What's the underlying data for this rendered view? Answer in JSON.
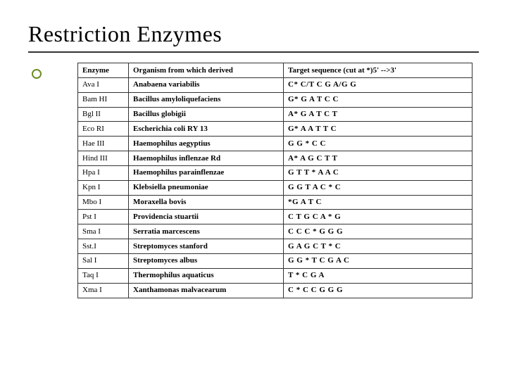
{
  "title": "Restriction Enzymes",
  "table": {
    "columns": [
      "Enzyme",
      "Organism from which derived",
      "Target sequence (cut at *)5' -->3'"
    ],
    "rows": [
      [
        "Ava I",
        "Anabaena variabilis",
        "C* C/T C G A/G G"
      ],
      [
        "Bam HI",
        "Bacillus amyloliquefaciens",
        "G* G A T C C"
      ],
      [
        "Bgl II",
        "Bacillus globigii",
        "A* G A T C T"
      ],
      [
        "Eco RI",
        "Escherichia coli RY 13",
        "G* A A T T C"
      ],
      [
        "Hae III",
        "Haemophilus aegyptius",
        "G G * C C"
      ],
      [
        "Hind III",
        "Haemophilus inflenzae Rd",
        "A* A G C T T"
      ],
      [
        "Hpa I",
        "Haemophilus parainflenzae",
        "G T T * A A C"
      ],
      [
        "Kpn I",
        "Klebsiella pneumoniae",
        "G G T A C * C"
      ],
      [
        "Mbo I",
        "Moraxella bovis",
        "*G A T C"
      ],
      [
        "Pst I",
        "Providencia stuartii",
        "C T G C A * G"
      ],
      [
        "Sma I",
        "Serratia marcescens",
        "C C C * G G G"
      ],
      [
        "Sst.I",
        "Streptomyces stanford",
        "G A G C T * C"
      ],
      [
        "Sal I",
        "Streptomyces albus",
        "G G * T C G A C"
      ],
      [
        "Taq I",
        "Thermophilus aquaticus",
        "T * C G A"
      ],
      [
        "Xma I",
        "Xanthamonas malvacearum",
        "C * C C G G G"
      ]
    ]
  },
  "colors": {
    "bullet_border": "#6b8e23",
    "border": "#333333",
    "bg": "#ffffff"
  }
}
